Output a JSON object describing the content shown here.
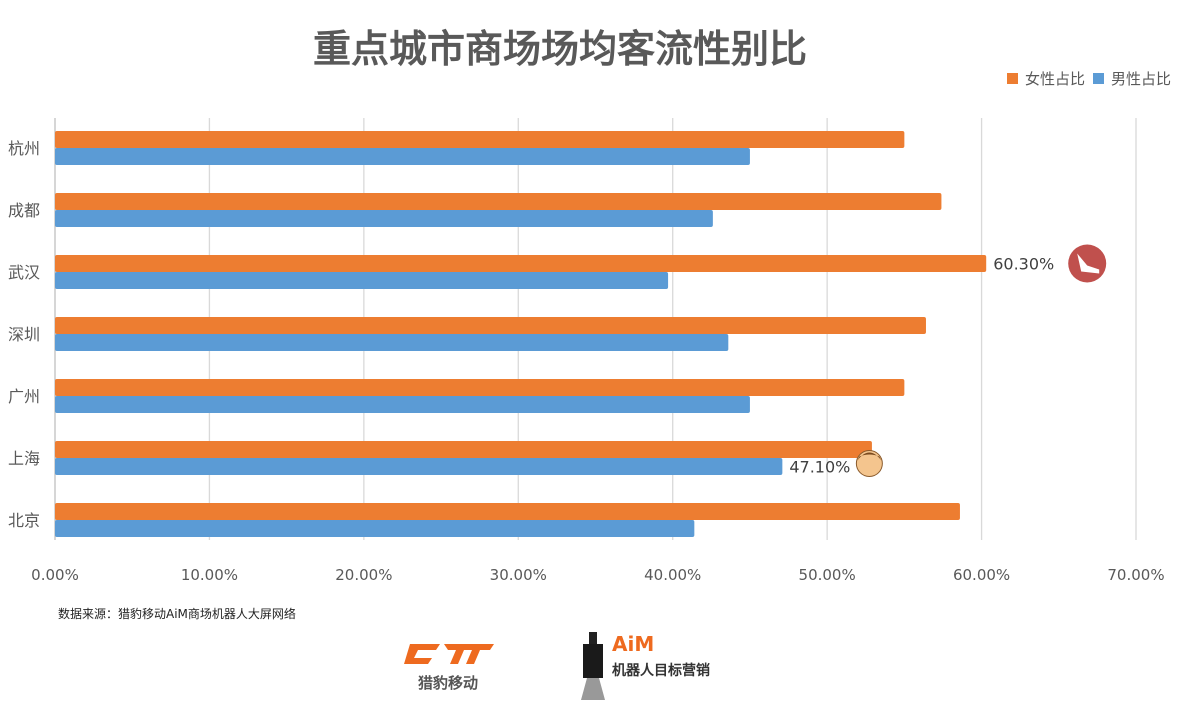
{
  "chart_data": {
    "type": "bar",
    "orientation": "horizontal",
    "title": "重点城市商场场均客流性别比",
    "categories": [
      "杭州",
      "成都",
      "武汉",
      "深圳",
      "广州",
      "上海",
      "北京"
    ],
    "series": [
      {
        "name": "女性占比",
        "color": "#ED7D31",
        "values": [
          55.0,
          57.4,
          60.3,
          56.4,
          55.0,
          52.9,
          58.6
        ]
      },
      {
        "name": "男性占比",
        "color": "#5B9BD5",
        "values": [
          45.0,
          42.6,
          39.7,
          43.6,
          45.0,
          47.1,
          41.4
        ]
      }
    ],
    "xlim": [
      0,
      70
    ],
    "x_ticks": [
      "0.00%",
      "10.00%",
      "20.00%",
      "30.00%",
      "40.00%",
      "50.00%",
      "60.00%",
      "70.00%"
    ],
    "grid": true,
    "legend": "top-right",
    "annotations": [
      {
        "category": "武汉",
        "series": "女性占比",
        "text": "60.30%",
        "icon": "high-heel-icon"
      },
      {
        "category": "上海",
        "series": "男性占比",
        "text": "47.10%",
        "icon": "man-face-icon"
      }
    ]
  },
  "footer": {
    "source": "数据来源：猎豹移动AiM商场机器人大屏网络",
    "logo1_text": "猎豹移动",
    "logo2_brand": "AiM",
    "logo2_text": "机器人目标营销"
  }
}
